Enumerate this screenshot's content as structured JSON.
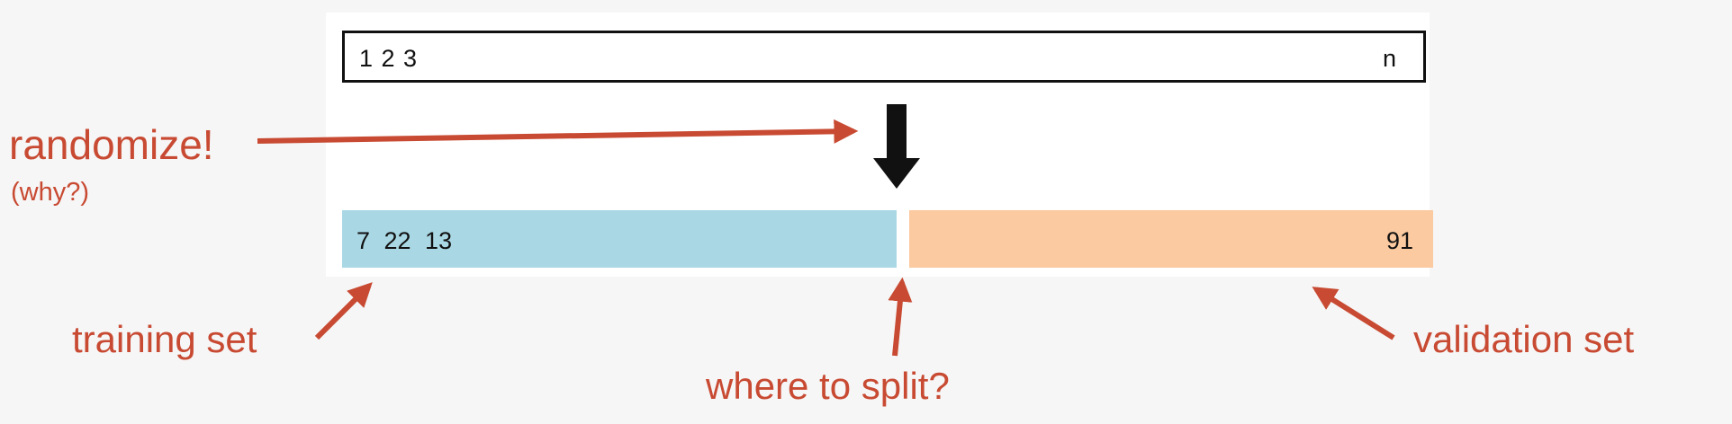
{
  "sequence": {
    "start": "1 2 3",
    "end": "n"
  },
  "training_bar": {
    "values": "7  22  13",
    "color": "#a9d8e4"
  },
  "validation_bar": {
    "value": "91",
    "color": "#fbcaa0"
  },
  "annotations": {
    "randomize": "randomize!",
    "why": "(why?)",
    "training_set": "training set",
    "where_to_split": "where to split?",
    "validation_set": "validation set"
  },
  "colors": {
    "annotation": "#c84a32",
    "shuffle_arrow": "#111111"
  }
}
